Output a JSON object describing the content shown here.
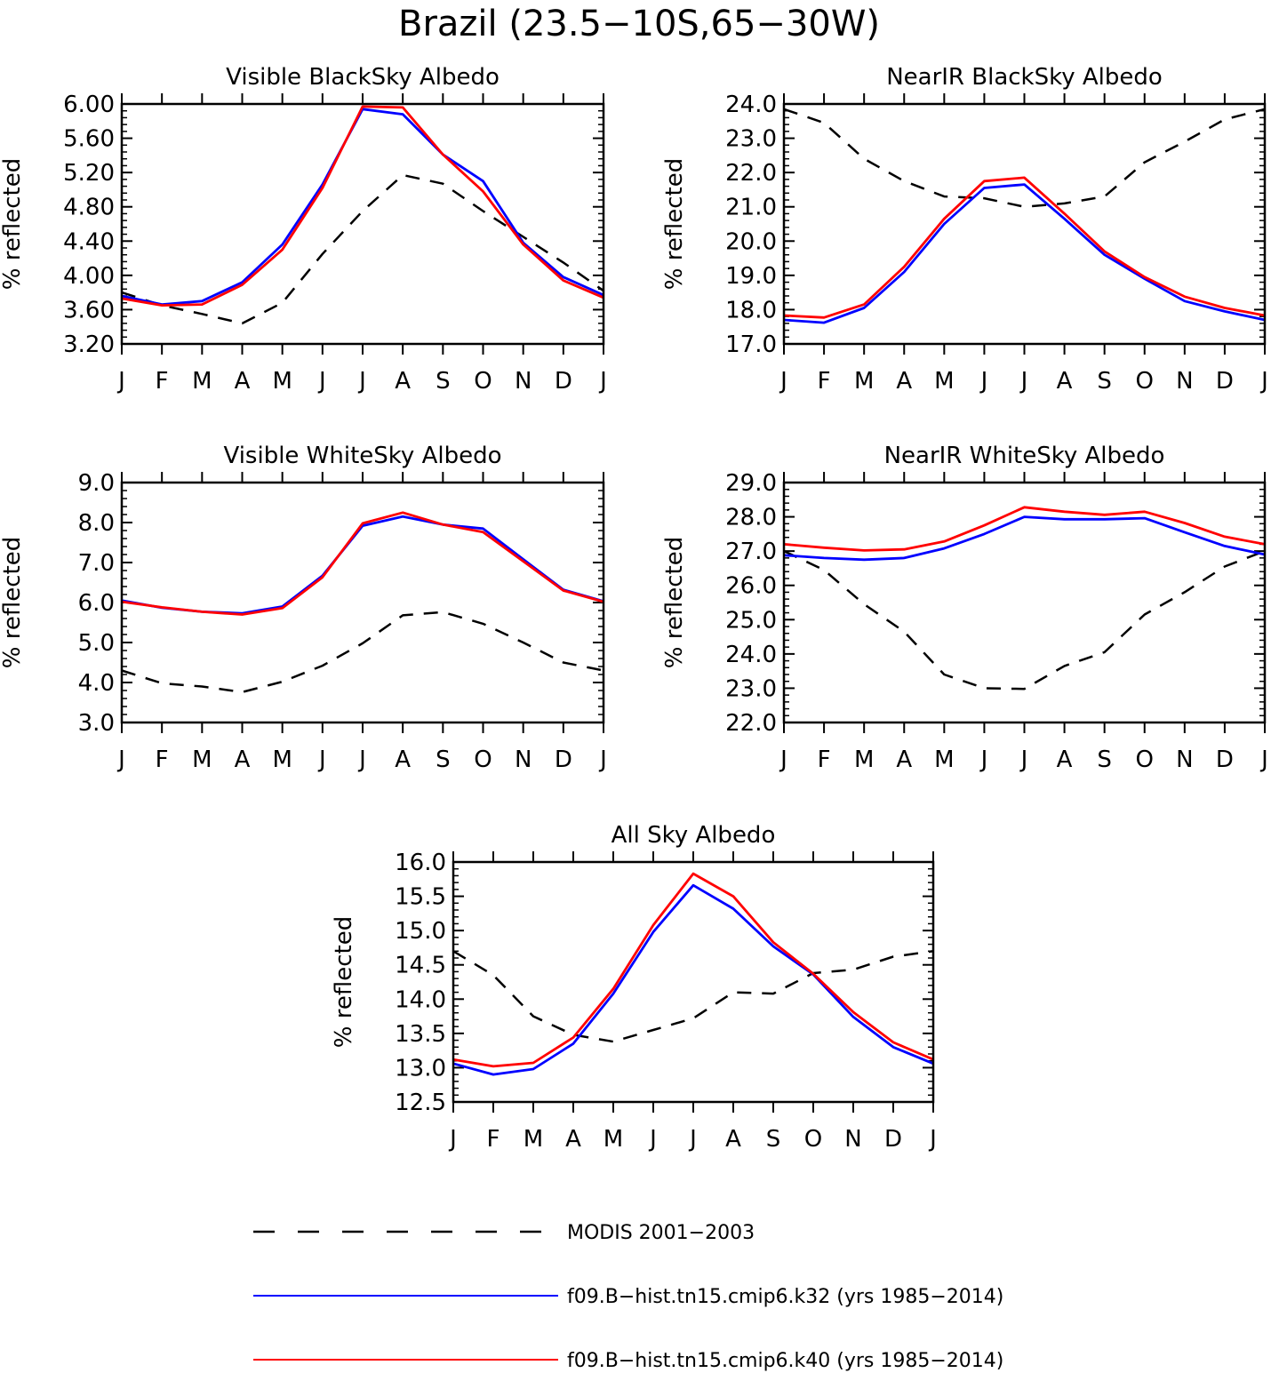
{
  "figure_title": "Brazil (23.5−10S,65−30W)",
  "legend": [
    {
      "label": "MODIS 2001−2003",
      "color": "#000000",
      "style": "dashed"
    },
    {
      "label": "f09.B−hist.tn15.cmip6.k32 (yrs 1985−2014)",
      "color": "#0000ff",
      "style": "solid"
    },
    {
      "label": "f09.B−hist.tn15.cmip6.k40 (yrs 1985−2014)",
      "color": "#ff0000",
      "style": "solid"
    }
  ],
  "chart_data": [
    {
      "type": "line",
      "title": "Visible BlackSky Albedo",
      "ylabel": "% reflected",
      "categories": [
        "J",
        "F",
        "M",
        "A",
        "M",
        "J",
        "J",
        "A",
        "S",
        "O",
        "N",
        "D",
        "J"
      ],
      "ylim": [
        3.2,
        6.0
      ],
      "yticks": [
        "3.20",
        "3.60",
        "4.00",
        "4.40",
        "4.80",
        "5.20",
        "5.60",
        "6.00"
      ],
      "series": [
        {
          "name": "MODIS 2001−2003",
          "color": "#000000",
          "style": "dashed",
          "values": [
            3.8,
            3.65,
            3.55,
            3.44,
            3.68,
            4.25,
            4.75,
            5.17,
            5.07,
            4.75,
            4.45,
            4.15,
            3.82
          ]
        },
        {
          "name": "f09.B−hist.tn15.cmip6.k32 (yrs 1985−2014)",
          "color": "#0000ff",
          "style": "solid",
          "values": [
            3.76,
            3.66,
            3.7,
            3.92,
            4.36,
            5.06,
            5.94,
            5.88,
            5.41,
            5.1,
            4.38,
            3.98,
            3.77
          ]
        },
        {
          "name": "f09.B−hist.tn15.cmip6.k40 (yrs 1985−2014)",
          "color": "#ff0000",
          "style": "solid",
          "values": [
            3.73,
            3.65,
            3.66,
            3.89,
            4.3,
            5.02,
            5.97,
            5.96,
            5.41,
            4.98,
            4.36,
            3.94,
            3.74
          ]
        }
      ]
    },
    {
      "type": "line",
      "title": "NearIR BlackSky Albedo",
      "ylabel": "% reflected",
      "categories": [
        "J",
        "F",
        "M",
        "A",
        "M",
        "J",
        "J",
        "A",
        "S",
        "O",
        "N",
        "D",
        "J"
      ],
      "ylim": [
        17.0,
        24.0
      ],
      "yticks": [
        "17.0",
        "18.0",
        "19.0",
        "20.0",
        "21.0",
        "22.0",
        "23.0",
        "24.0"
      ],
      "series": [
        {
          "name": "MODIS 2001−2003",
          "color": "#000000",
          "style": "dashed",
          "values": [
            23.85,
            23.45,
            22.4,
            21.75,
            21.3,
            21.25,
            21.0,
            21.1,
            21.3,
            22.3,
            22.9,
            23.55,
            23.85
          ]
        },
        {
          "name": "f09.B−hist.tn15.cmip6.k32 (yrs 1985−2014)",
          "color": "#0000ff",
          "style": "solid",
          "values": [
            17.7,
            17.62,
            18.05,
            19.1,
            20.5,
            21.55,
            21.65,
            20.65,
            19.6,
            18.9,
            18.25,
            17.95,
            17.7
          ]
        },
        {
          "name": "f09.B−hist.tn15.cmip6.k40 (yrs 1985−2014)",
          "color": "#ff0000",
          "style": "solid",
          "values": [
            17.83,
            17.77,
            18.15,
            19.25,
            20.65,
            21.75,
            21.85,
            20.8,
            19.7,
            18.95,
            18.38,
            18.05,
            17.83
          ]
        }
      ]
    },
    {
      "type": "line",
      "title": "Visible WhiteSky Albedo",
      "ylabel": "% reflected",
      "categories": [
        "J",
        "F",
        "M",
        "A",
        "M",
        "J",
        "J",
        "A",
        "S",
        "O",
        "N",
        "D",
        "J"
      ],
      "ylim": [
        3.0,
        9.0
      ],
      "yticks": [
        "3.0",
        "4.0",
        "5.0",
        "6.0",
        "7.0",
        "8.0",
        "9.0"
      ],
      "series": [
        {
          "name": "MODIS 2001−2003",
          "color": "#000000",
          "style": "dashed",
          "values": [
            4.3,
            3.98,
            3.9,
            3.76,
            4.02,
            4.42,
            4.98,
            5.68,
            5.76,
            5.47,
            5.0,
            4.5,
            4.3
          ]
        },
        {
          "name": "f09.B−hist.tn15.cmip6.k32 (yrs 1985−2014)",
          "color": "#0000ff",
          "style": "solid",
          "values": [
            6.05,
            5.87,
            5.77,
            5.73,
            5.9,
            6.67,
            7.92,
            8.15,
            7.95,
            7.85,
            7.08,
            6.32,
            6.03
          ]
        },
        {
          "name": "f09.B−hist.tn15.cmip6.k40 (yrs 1985−2014)",
          "color": "#ff0000",
          "style": "solid",
          "values": [
            6.02,
            5.88,
            5.77,
            5.7,
            5.86,
            6.63,
            7.98,
            8.25,
            7.95,
            7.76,
            7.03,
            6.3,
            6.02
          ]
        }
      ]
    },
    {
      "type": "line",
      "title": "NearIR WhiteSky Albedo",
      "ylabel": "% reflected",
      "categories": [
        "J",
        "F",
        "M",
        "A",
        "M",
        "J",
        "J",
        "A",
        "S",
        "O",
        "N",
        "D",
        "J"
      ],
      "ylim": [
        22.0,
        29.0
      ],
      "yticks": [
        "22.0",
        "23.0",
        "24.0",
        "25.0",
        "26.0",
        "27.0",
        "28.0",
        "29.0"
      ],
      "series": [
        {
          "name": "MODIS 2001−2003",
          "color": "#000000",
          "style": "dashed",
          "values": [
            27.0,
            26.45,
            25.45,
            24.65,
            23.4,
            23.0,
            22.98,
            23.65,
            24.05,
            25.15,
            25.8,
            26.55,
            27.0
          ]
        },
        {
          "name": "f09.B−hist.tn15.cmip6.k32 (yrs 1985−2014)",
          "color": "#0000ff",
          "style": "solid",
          "values": [
            26.88,
            26.8,
            26.75,
            26.8,
            27.08,
            27.5,
            28.0,
            27.93,
            27.93,
            27.96,
            27.55,
            27.15,
            26.9
          ]
        },
        {
          "name": "f09.B−hist.tn15.cmip6.k40 (yrs 1985−2014)",
          "color": "#ff0000",
          "style": "solid",
          "values": [
            27.2,
            27.1,
            27.02,
            27.05,
            27.28,
            27.75,
            28.28,
            28.15,
            28.06,
            28.15,
            27.82,
            27.42,
            27.2
          ]
        }
      ]
    },
    {
      "type": "line",
      "title": "All Sky Albedo",
      "ylabel": "% reflected",
      "categories": [
        "J",
        "F",
        "M",
        "A",
        "M",
        "J",
        "J",
        "A",
        "S",
        "O",
        "N",
        "D",
        "J"
      ],
      "ylim": [
        12.5,
        16.0
      ],
      "yticks": [
        "12.5",
        "13.0",
        "13.5",
        "14.0",
        "14.5",
        "15.0",
        "15.5",
        "16.0"
      ],
      "series": [
        {
          "name": "MODIS 2001−2003",
          "color": "#000000",
          "style": "dashed",
          "values": [
            14.7,
            14.35,
            13.75,
            13.48,
            13.38,
            13.55,
            13.72,
            14.1,
            14.08,
            14.38,
            14.43,
            14.62,
            14.7
          ]
        },
        {
          "name": "f09.B−hist.tn15.cmip6.k32 (yrs 1985−2014)",
          "color": "#0000ff",
          "style": "solid",
          "values": [
            13.06,
            12.9,
            12.98,
            13.35,
            14.08,
            14.98,
            15.66,
            15.32,
            14.77,
            14.36,
            13.74,
            13.3,
            13.06
          ]
        },
        {
          "name": "f09.B−hist.tn15.cmip6.k40 (yrs 1985−2014)",
          "color": "#ff0000",
          "style": "solid",
          "values": [
            13.12,
            13.02,
            13.07,
            13.44,
            14.15,
            15.08,
            15.83,
            15.5,
            14.83,
            14.37,
            13.81,
            13.37,
            13.12
          ]
        }
      ]
    }
  ]
}
